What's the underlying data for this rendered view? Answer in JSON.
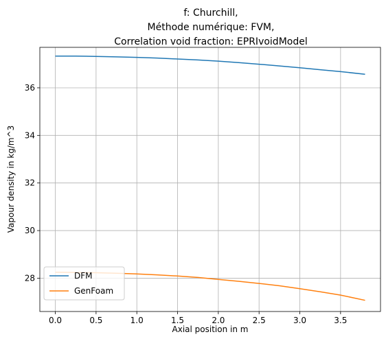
{
  "chart_data": {
    "type": "line",
    "title_lines": [
      "f: Churchill,",
      "Méthode numérique: FVM,",
      "Correlation void fraction: EPRIvoidModel"
    ],
    "xlabel": "Axial position in m",
    "ylabel": "Vapour density in kg/m^3",
    "xlim": [
      -0.19,
      3.99
    ],
    "ylim": [
      26.6,
      37.7
    ],
    "x_ticks": [
      0.0,
      0.5,
      1.0,
      1.5,
      2.0,
      2.5,
      3.0,
      3.5
    ],
    "x_tick_labels": [
      "0.0",
      "0.5",
      "1.0",
      "1.5",
      "2.0",
      "2.5",
      "3.0",
      "3.5"
    ],
    "y_ticks": [
      28,
      30,
      32,
      34,
      36
    ],
    "y_tick_labels": [
      "28",
      "30",
      "32",
      "34",
      "36"
    ],
    "grid": true,
    "legend_position": "lower-left",
    "series": [
      {
        "name": "DFM",
        "color": "#1f77b4",
        "x": [
          0.0,
          0.25,
          0.5,
          0.75,
          1.0,
          1.25,
          1.5,
          1.75,
          2.0,
          2.25,
          2.5,
          2.75,
          3.0,
          3.25,
          3.5,
          3.8
        ],
        "y": [
          37.33,
          37.33,
          37.32,
          37.3,
          37.28,
          37.25,
          37.21,
          37.17,
          37.12,
          37.06,
          36.99,
          36.92,
          36.84,
          36.76,
          36.68,
          36.57
        ]
      },
      {
        "name": "GenFoam",
        "color": "#ff7f0e",
        "x": [
          0.0,
          0.25,
          0.5,
          0.75,
          1.0,
          1.25,
          1.5,
          1.75,
          2.0,
          2.25,
          2.5,
          2.75,
          3.0,
          3.25,
          3.5,
          3.8
        ],
        "y": [
          28.25,
          28.24,
          28.23,
          28.21,
          28.18,
          28.14,
          28.09,
          28.03,
          27.95,
          27.87,
          27.78,
          27.68,
          27.56,
          27.43,
          27.29,
          27.07
        ]
      }
    ]
  }
}
